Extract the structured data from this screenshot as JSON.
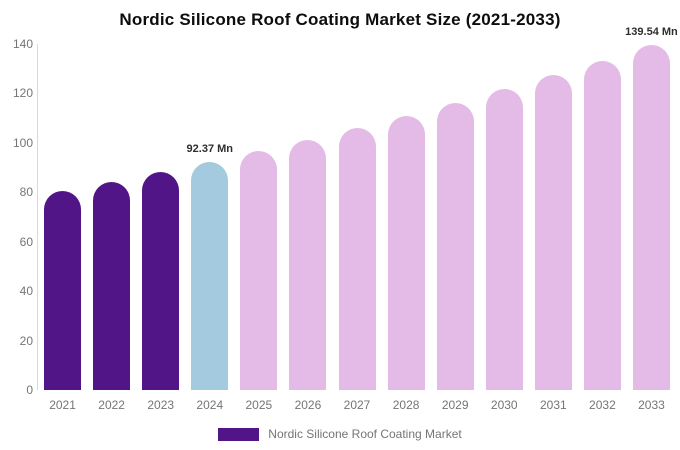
{
  "title": "Nordic Silicone Roof Coating Market Size (2021-2033)",
  "legend": {
    "label": "Nordic Silicone Roof Coating Market",
    "swatch_color": "#521587"
  },
  "colors": {
    "historical_bar": "#521587",
    "highlight_bar": "#a3cade",
    "forecast_bar": "#e4bbe7",
    "axis_line": "#d9d9d9",
    "tick_text": "#757575",
    "value_label_text": "#2e2e2e"
  },
  "chart_data": {
    "type": "bar",
    "title": "Nordic Silicone Roof Coating Market Size (2021-2033)",
    "categories": [
      "2021",
      "2022",
      "2023",
      "2024",
      "2025",
      "2026",
      "2027",
      "2028",
      "2029",
      "2030",
      "2031",
      "2032",
      "2033"
    ],
    "values": [
      80.5,
      84.28,
      88.23,
      92.37,
      96.7,
      101.24,
      105.99,
      110.96,
      116.17,
      121.62,
      127.32,
      133.3,
      139.54
    ],
    "bar_colors": [
      "#521587",
      "#521587",
      "#521587",
      "#a3cade",
      "#e4bbe7",
      "#e4bbe7",
      "#e4bbe7",
      "#e4bbe7",
      "#e4bbe7",
      "#e4bbe7",
      "#e4bbe7",
      "#e4bbe7",
      "#e4bbe7"
    ],
    "data_labels": {
      "2024": "92.37 Mn",
      "2033": "139.54 Mn"
    },
    "ylabel": "",
    "xlabel": "",
    "ylim": [
      0,
      140
    ],
    "yticks": [
      0,
      20,
      40,
      60,
      80,
      100,
      120,
      140
    ],
    "grid": false,
    "legend": [
      "Nordic Silicone Roof Coating Market"
    ],
    "legend_position": "bottom"
  }
}
